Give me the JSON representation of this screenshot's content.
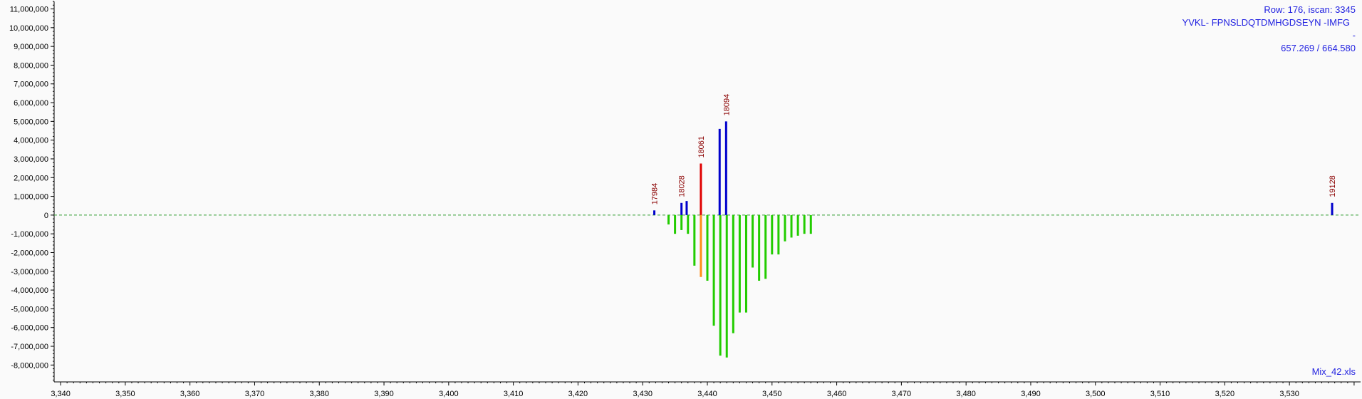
{
  "info": {
    "row_scan": "Row: 176, iscan: 3345",
    "sequence": "YVKL- FPNSLDQTDMHGDSEYN -IMFG",
    "dash": "-",
    "mz": "657.269 / 664.580",
    "file": "Mix_42.xls"
  },
  "colors": {
    "background": "#fafafa",
    "baseline": "#2e9a2e",
    "upper_default": "#0000cc",
    "upper_highlight": "#e00000",
    "lower_default": "#22cc00",
    "lower_highlight": "#ff8c1a",
    "peak_label": "#8b0000",
    "info_text": "#1f1fe0"
  },
  "chart_data": {
    "type": "bar",
    "title": "",
    "xlabel": "",
    "ylabel": "",
    "xlim": [
      3339,
      3541
    ],
    "ylim": [
      -8900000,
      11400000
    ],
    "grid": false,
    "legend": "none",
    "x_ticks": [
      3340,
      3350,
      3360,
      3370,
      3380,
      3390,
      3400,
      3410,
      3420,
      3430,
      3440,
      3450,
      3460,
      3470,
      3480,
      3490,
      3500,
      3510,
      3520,
      3530
    ],
    "x_tick_labels": [
      "3,340",
      "3,350",
      "3,360",
      "3,370",
      "3,380",
      "3,390",
      "3,400",
      "3,410",
      "3,420",
      "3,430",
      "3,440",
      "3,450",
      "3,460",
      "3,470",
      "3,480",
      "3,490",
      "3,500",
      "3,510",
      "3,520",
      "3,530"
    ],
    "y_ticks": [
      11000000,
      10000000,
      9000000,
      8000000,
      7000000,
      6000000,
      5000000,
      4000000,
      3000000,
      2000000,
      1000000,
      0,
      -1000000,
      -2000000,
      -3000000,
      -4000000,
      -5000000,
      -6000000,
      -7000000,
      -8000000
    ],
    "y_tick_labels": [
      "11,000,000",
      "10,000,000",
      "9,000,000",
      "8,000,000",
      "7,000,000",
      "6,000,000",
      "5,000,000",
      "4,000,000",
      "3,000,000",
      "2,000,000",
      "1,000,000",
      "0",
      "-1,000,000",
      "-2,000,000",
      "-3,000,000",
      "-4,000,000",
      "-5,000,000",
      "-6,000,000",
      "-7,000,000",
      "-8,000,000"
    ],
    "upper_series": [
      {
        "x": 3431.8,
        "y": 250000,
        "label": "17984"
      },
      {
        "x": 3436.0,
        "y": 650000,
        "label": "18028"
      },
      {
        "x": 3436.8,
        "y": 750000,
        "label": ""
      },
      {
        "x": 3439.0,
        "y": 2750000,
        "label": "18061",
        "highlight": true
      },
      {
        "x": 3441.9,
        "y": 4600000,
        "label": ""
      },
      {
        "x": 3442.9,
        "y": 5000000,
        "label": "18094"
      },
      {
        "x": 3536.6,
        "y": 650000,
        "label": "19128"
      }
    ],
    "lower_series": [
      {
        "x": 3434.0,
        "y": -500000
      },
      {
        "x": 3435.0,
        "y": -1000000
      },
      {
        "x": 3436.0,
        "y": -800000
      },
      {
        "x": 3437.0,
        "y": -1000000
      },
      {
        "x": 3438.0,
        "y": -2700000
      },
      {
        "x": 3439.0,
        "y": -3300000,
        "highlight": true
      },
      {
        "x": 3440.0,
        "y": -3500000
      },
      {
        "x": 3441.0,
        "y": -5900000
      },
      {
        "x": 3442.0,
        "y": -7500000
      },
      {
        "x": 3443.0,
        "y": -7600000
      },
      {
        "x": 3444.0,
        "y": -6300000
      },
      {
        "x": 3445.0,
        "y": -5200000
      },
      {
        "x": 3446.0,
        "y": -5200000
      },
      {
        "x": 3447.0,
        "y": -2800000
      },
      {
        "x": 3448.0,
        "y": -3500000
      },
      {
        "x": 3449.0,
        "y": -3400000
      },
      {
        "x": 3450.0,
        "y": -2100000
      },
      {
        "x": 3451.0,
        "y": -2100000
      },
      {
        "x": 3452.0,
        "y": -1400000
      },
      {
        "x": 3453.0,
        "y": -1200000
      },
      {
        "x": 3454.0,
        "y": -1100000
      },
      {
        "x": 3455.0,
        "y": -1000000
      },
      {
        "x": 3456.0,
        "y": -1000000
      }
    ]
  }
}
